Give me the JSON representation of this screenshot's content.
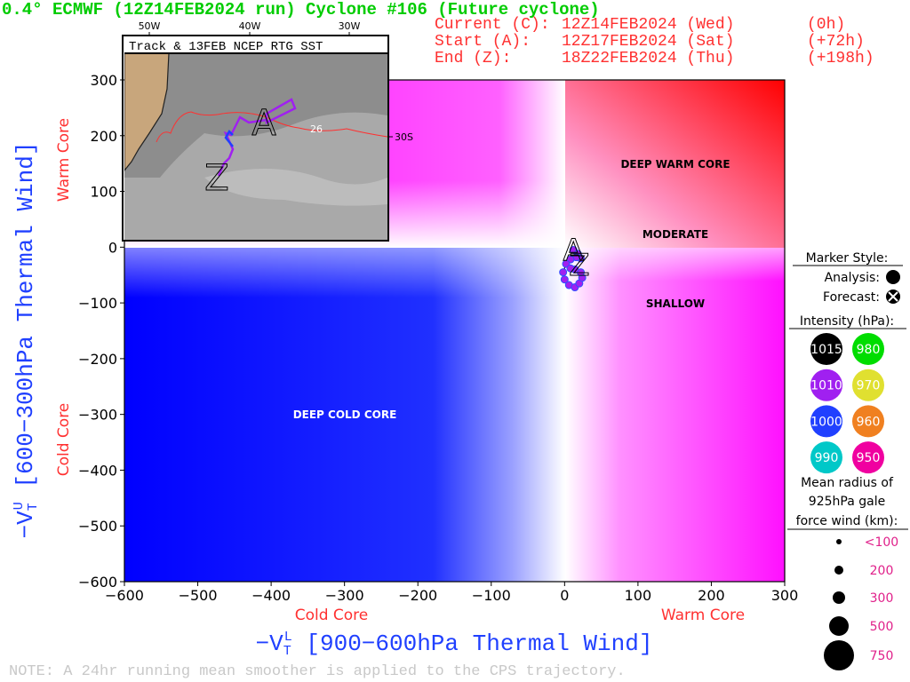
{
  "chart_data": {
    "type": "line",
    "title": "0.4° ECMWF (12Z14FEB2024 run) Cyclone #106 (Future cyclone)",
    "info": [
      [
        "Current (C):",
        "12Z14FEB2024 (Wed)",
        "(0h)"
      ],
      [
        "Start (A):",
        "12Z17FEB2024 (Sat)",
        "(+72h)"
      ],
      [
        "End (Z):",
        "18Z22FEB2024 (Thu)",
        "(+198h)"
      ]
    ],
    "x_label": {
      "main": "−V",
      "sub": "T",
      "sup": "L",
      "rest": " [900−600hPa Thermal Wind]"
    },
    "y_label": {
      "main": "−V",
      "sub": "T",
      "sup": "U",
      "rest": " [600−300hPa Thermal Wind]"
    },
    "x_side_labels": [
      "Cold Core",
      "Warm Core"
    ],
    "y_side_labels": [
      "Warm Core",
      "Cold Core"
    ],
    "regions": [
      "DEEP WARM CORE",
      "MODERATE",
      "SHALLOW",
      "DEEP COLD CORE"
    ],
    "xlim": [
      -600,
      300
    ],
    "ylim": [
      -600,
      300
    ],
    "xticks": [
      {
        "value": -600,
        "label": "−600"
      },
      {
        "value": -500,
        "label": "−500"
      },
      {
        "value": -400,
        "label": "−400"
      },
      {
        "value": -300,
        "label": "−300"
      },
      {
        "value": -200,
        "label": "−200"
      },
      {
        "value": -100,
        "label": "−100"
      },
      0,
      100,
      200,
      300
    ],
    "yticks": [
      {
        "value": -600,
        "label": "−600"
      },
      {
        "value": -500,
        "label": "−500"
      },
      {
        "value": -400,
        "label": "−400"
      },
      {
        "value": -300,
        "label": "−300"
      },
      {
        "value": -200,
        "label": "−200"
      },
      {
        "value": -100,
        "label": "−100"
      },
      0,
      100,
      200,
      300
    ],
    "series": [
      {
        "name": "Cyclone #106",
        "color": "#a020f0",
        "x": [
          12,
          18,
          22,
          16,
          8,
          2,
          -2,
          0,
          6,
          14,
          20,
          24,
          22,
          14,
          8
        ],
        "values": [
          -5,
          -12,
          -20,
          -18,
          -22,
          -30,
          -45,
          -58,
          -68,
          -72,
          -65,
          -55,
          -45,
          -40,
          -38
        ]
      }
    ],
    "start_marker": "A",
    "end_marker": "Z",
    "inset": {
      "title": "Track & 13FEB NCEP RTG SST",
      "lon_labels": [
        "50W",
        "40W",
        "30W"
      ],
      "contour_label": "26",
      "lat_label": "30S"
    },
    "legend": {
      "marker_title": "Marker Style:",
      "analysis": "Analysis:",
      "forecast": "Forecast:",
      "intensity_title": "Intensity (hPa):",
      "intensity": [
        {
          "label": "1015",
          "color": "#000000"
        },
        {
          "label": "980",
          "color": "#00dd00"
        },
        {
          "label": "1010",
          "color": "#a020f0"
        },
        {
          "label": "970",
          "color": "#e0e030"
        },
        {
          "label": "1000",
          "color": "#2040ff"
        },
        {
          "label": "960",
          "color": "#f08020"
        },
        {
          "label": "990",
          "color": "#00c8c8"
        },
        {
          "label": "950",
          "color": "#f000a0"
        }
      ],
      "size_title": [
        "Mean radius of",
        "925hPa gale",
        "force wind (km):"
      ],
      "sizes": [
        "<100",
        "200",
        "300",
        "500",
        "750"
      ]
    },
    "note": "NOTE:  A 24hr running mean smoother is applied to the CPS trajectory."
  }
}
